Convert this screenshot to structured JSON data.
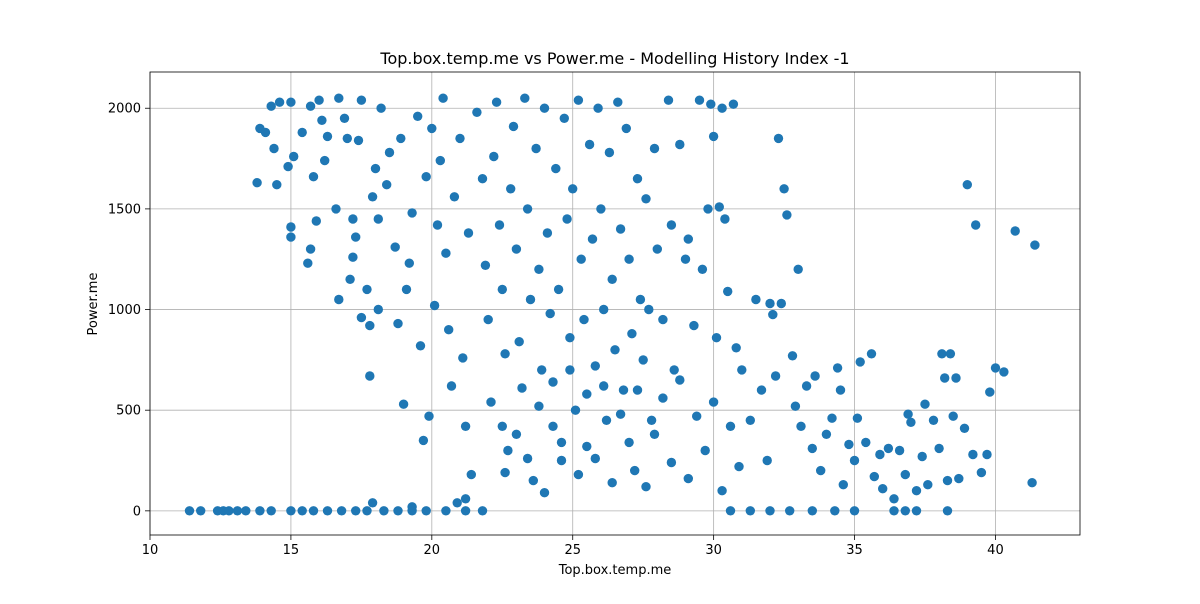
{
  "chart_data": {
    "type": "scatter",
    "title": "Top.box.temp.me vs Power.me - Modelling History Index -1",
    "xlabel": "Top.box.temp.me",
    "ylabel": "Power.me",
    "xlim": [
      10,
      43
    ],
    "ylim": [
      -120,
      2180
    ],
    "xticks": [
      10,
      15,
      20,
      25,
      30,
      35,
      40
    ],
    "yticks": [
      0,
      500,
      1000,
      1500,
      2000
    ],
    "grid": true,
    "marker_color": "#1f77b4",
    "points": [
      [
        11.4,
        0
      ],
      [
        11.8,
        0
      ],
      [
        12.4,
        0
      ],
      [
        12.6,
        0
      ],
      [
        12.8,
        0
      ],
      [
        13.1,
        0
      ],
      [
        13.4,
        0
      ],
      [
        13.9,
        0
      ],
      [
        14.3,
        0
      ],
      [
        15.0,
        0
      ],
      [
        15.4,
        0
      ],
      [
        15.8,
        0
      ],
      [
        16.3,
        0
      ],
      [
        16.8,
        0
      ],
      [
        17.3,
        0
      ],
      [
        17.7,
        0
      ],
      [
        18.3,
        0
      ],
      [
        18.8,
        0
      ],
      [
        19.3,
        0
      ],
      [
        19.8,
        0
      ],
      [
        20.5,
        0
      ],
      [
        21.2,
        0
      ],
      [
        21.8,
        0
      ],
      [
        30.6,
        0
      ],
      [
        31.3,
        0
      ],
      [
        32.0,
        0
      ],
      [
        32.7,
        0
      ],
      [
        33.5,
        0
      ],
      [
        34.3,
        0
      ],
      [
        35.0,
        0
      ],
      [
        36.4,
        0
      ],
      [
        36.8,
        0
      ],
      [
        37.2,
        0
      ],
      [
        38.3,
        0
      ],
      [
        17.9,
        40
      ],
      [
        19.3,
        20
      ],
      [
        20.9,
        40
      ],
      [
        21.2,
        60
      ],
      [
        13.8,
        1630
      ],
      [
        13.9,
        1900
      ],
      [
        14.1,
        1880
      ],
      [
        14.3,
        2010
      ],
      [
        14.4,
        1800
      ],
      [
        14.6,
        2030
      ],
      [
        14.5,
        1620
      ],
      [
        14.9,
        1710
      ],
      [
        15.0,
        2030
      ],
      [
        15.1,
        1760
      ],
      [
        15.0,
        1410
      ],
      [
        15.0,
        1360
      ],
      [
        15.4,
        1880
      ],
      [
        15.6,
        1230
      ],
      [
        15.7,
        1300
      ],
      [
        15.7,
        2010
      ],
      [
        15.8,
        1660
      ],
      [
        15.9,
        1440
      ],
      [
        16.0,
        2040
      ],
      [
        16.1,
        1940
      ],
      [
        16.2,
        1740
      ],
      [
        16.3,
        1860
      ],
      [
        16.6,
        1500
      ],
      [
        16.7,
        2050
      ],
      [
        16.7,
        1050
      ],
      [
        16.9,
        1950
      ],
      [
        17.0,
        1850
      ],
      [
        17.1,
        1150
      ],
      [
        17.2,
        1450
      ],
      [
        17.2,
        1260
      ],
      [
        17.3,
        1360
      ],
      [
        17.4,
        1840
      ],
      [
        17.5,
        960
      ],
      [
        17.5,
        2040
      ],
      [
        17.7,
        1100
      ],
      [
        17.8,
        920
      ],
      [
        17.8,
        670
      ],
      [
        17.9,
        1560
      ],
      [
        18.0,
        1700
      ],
      [
        18.1,
        1450
      ],
      [
        18.1,
        1000
      ],
      [
        18.2,
        2000
      ],
      [
        18.4,
        1620
      ],
      [
        18.5,
        1780
      ],
      [
        18.7,
        1310
      ],
      [
        18.8,
        930
      ],
      [
        18.9,
        1850
      ],
      [
        19.0,
        530
      ],
      [
        19.1,
        1100
      ],
      [
        19.2,
        1230
      ],
      [
        19.3,
        1480
      ],
      [
        19.5,
        1960
      ],
      [
        19.6,
        820
      ],
      [
        19.7,
        350
      ],
      [
        19.8,
        1660
      ],
      [
        19.9,
        470
      ],
      [
        20.0,
        1900
      ],
      [
        20.1,
        1020
      ],
      [
        20.2,
        1420
      ],
      [
        20.3,
        1740
      ],
      [
        20.4,
        2050
      ],
      [
        20.5,
        1280
      ],
      [
        20.6,
        900
      ],
      [
        20.7,
        620
      ],
      [
        20.8,
        1560
      ],
      [
        21.0,
        1850
      ],
      [
        21.1,
        760
      ],
      [
        21.2,
        420
      ],
      [
        21.3,
        1380
      ],
      [
        21.4,
        180
      ],
      [
        21.6,
        1980
      ],
      [
        21.8,
        1650
      ],
      [
        21.9,
        1220
      ],
      [
        22.0,
        950
      ],
      [
        22.1,
        540
      ],
      [
        22.2,
        1760
      ],
      [
        22.3,
        2030
      ],
      [
        22.4,
        1420
      ],
      [
        22.5,
        1100
      ],
      [
        22.6,
        780
      ],
      [
        22.7,
        300
      ],
      [
        22.8,
        1600
      ],
      [
        22.9,
        1910
      ],
      [
        23.0,
        1300
      ],
      [
        23.1,
        840
      ],
      [
        23.2,
        610
      ],
      [
        23.3,
        2050
      ],
      [
        23.4,
        1500
      ],
      [
        23.5,
        1050
      ],
      [
        23.6,
        150
      ],
      [
        23.7,
        1800
      ],
      [
        23.8,
        1200
      ],
      [
        23.9,
        700
      ],
      [
        24.0,
        2000
      ],
      [
        24.1,
        1380
      ],
      [
        24.2,
        980
      ],
      [
        24.3,
        420
      ],
      [
        24.4,
        1700
      ],
      [
        24.5,
        1100
      ],
      [
        24.6,
        250
      ],
      [
        24.7,
        1950
      ],
      [
        24.8,
        1450
      ],
      [
        24.9,
        860
      ],
      [
        25.0,
        1600
      ],
      [
        25.1,
        500
      ],
      [
        25.2,
        2040
      ],
      [
        25.3,
        1250
      ],
      [
        25.4,
        950
      ],
      [
        25.5,
        320
      ],
      [
        25.6,
        1820
      ],
      [
        25.7,
        1350
      ],
      [
        25.8,
        720
      ],
      [
        25.9,
        2000
      ],
      [
        26.0,
        1500
      ],
      [
        26.1,
        1000
      ],
      [
        26.2,
        450
      ],
      [
        26.3,
        1780
      ],
      [
        26.4,
        1150
      ],
      [
        26.5,
        800
      ],
      [
        26.6,
        2030
      ],
      [
        26.7,
        1400
      ],
      [
        26.8,
        600
      ],
      [
        26.9,
        1900
      ],
      [
        27.0,
        1250
      ],
      [
        27.1,
        880
      ],
      [
        27.2,
        200
      ],
      [
        27.3,
        1650
      ],
      [
        27.4,
        1050
      ],
      [
        27.5,
        750
      ],
      [
        27.6,
        1550
      ],
      [
        27.7,
        1000
      ],
      [
        27.8,
        450
      ],
      [
        27.9,
        1800
      ],
      [
        28.0,
        1300
      ],
      [
        28.2,
        950
      ],
      [
        28.4,
        2040
      ],
      [
        28.5,
        1420
      ],
      [
        28.6,
        700
      ],
      [
        28.8,
        1820
      ],
      [
        29.0,
        1250
      ],
      [
        29.1,
        1350
      ],
      [
        29.3,
        920
      ],
      [
        29.5,
        2040
      ],
      [
        29.6,
        1200
      ],
      [
        29.8,
        1500
      ],
      [
        29.9,
        2020
      ],
      [
        30.0,
        1860
      ],
      [
        30.1,
        860
      ],
      [
        30.2,
        1510
      ],
      [
        30.3,
        2000
      ],
      [
        30.4,
        1450
      ],
      [
        30.5,
        1090
      ],
      [
        30.7,
        2020
      ],
      [
        30.8,
        810
      ],
      [
        22.5,
        420
      ],
      [
        22.6,
        190
      ],
      [
        23.0,
        380
      ],
      [
        23.4,
        260
      ],
      [
        23.8,
        520
      ],
      [
        24.0,
        90
      ],
      [
        24.3,
        640
      ],
      [
        24.6,
        340
      ],
      [
        24.9,
        700
      ],
      [
        25.2,
        180
      ],
      [
        25.5,
        580
      ],
      [
        25.8,
        260
      ],
      [
        26.1,
        620
      ],
      [
        26.4,
        140
      ],
      [
        26.7,
        480
      ],
      [
        27.0,
        340
      ],
      [
        27.3,
        600
      ],
      [
        27.6,
        120
      ],
      [
        27.9,
        380
      ],
      [
        28.2,
        560
      ],
      [
        28.5,
        240
      ],
      [
        28.8,
        650
      ],
      [
        29.1,
        160
      ],
      [
        29.4,
        470
      ],
      [
        29.7,
        300
      ],
      [
        30.0,
        540
      ],
      [
        30.3,
        100
      ],
      [
        30.6,
        420
      ],
      [
        30.9,
        220
      ],
      [
        31.0,
        700
      ],
      [
        31.3,
        450
      ],
      [
        31.5,
        1050
      ],
      [
        31.7,
        600
      ],
      [
        31.9,
        250
      ],
      [
        32.0,
        1030
      ],
      [
        32.1,
        975
      ],
      [
        32.2,
        670
      ],
      [
        32.3,
        1850
      ],
      [
        32.4,
        1030
      ],
      [
        32.5,
        1600
      ],
      [
        32.6,
        1470
      ],
      [
        32.8,
        770
      ],
      [
        32.9,
        520
      ],
      [
        33.0,
        1200
      ],
      [
        33.1,
        420
      ],
      [
        33.3,
        620
      ],
      [
        33.5,
        310
      ],
      [
        33.6,
        670
      ],
      [
        33.8,
        200
      ],
      [
        34.0,
        380
      ],
      [
        34.2,
        460
      ],
      [
        34.4,
        710
      ],
      [
        34.5,
        600
      ],
      [
        34.6,
        130
      ],
      [
        34.8,
        330
      ],
      [
        35.0,
        250
      ],
      [
        35.1,
        460
      ],
      [
        35.2,
        740
      ],
      [
        35.4,
        340
      ],
      [
        35.6,
        780
      ],
      [
        35.7,
        170
      ],
      [
        35.9,
        280
      ],
      [
        36.0,
        110
      ],
      [
        36.2,
        310
      ],
      [
        36.4,
        60
      ],
      [
        36.6,
        300
      ],
      [
        36.8,
        180
      ],
      [
        36.9,
        480
      ],
      [
        37.0,
        440
      ],
      [
        37.2,
        100
      ],
      [
        37.4,
        270
      ],
      [
        37.5,
        530
      ],
      [
        37.6,
        130
      ],
      [
        37.8,
        450
      ],
      [
        38.0,
        310
      ],
      [
        38.1,
        780
      ],
      [
        38.2,
        660
      ],
      [
        38.3,
        150
      ],
      [
        38.4,
        780
      ],
      [
        38.5,
        470
      ],
      [
        38.6,
        660
      ],
      [
        38.7,
        160
      ],
      [
        38.9,
        410
      ],
      [
        39.0,
        1620
      ],
      [
        39.2,
        280
      ],
      [
        39.3,
        1420
      ],
      [
        39.5,
        190
      ],
      [
        39.7,
        280
      ],
      [
        39.8,
        590
      ],
      [
        40.0,
        710
      ],
      [
        40.3,
        690
      ],
      [
        40.7,
        1390
      ],
      [
        41.3,
        140
      ],
      [
        41.4,
        1320
      ]
    ]
  }
}
